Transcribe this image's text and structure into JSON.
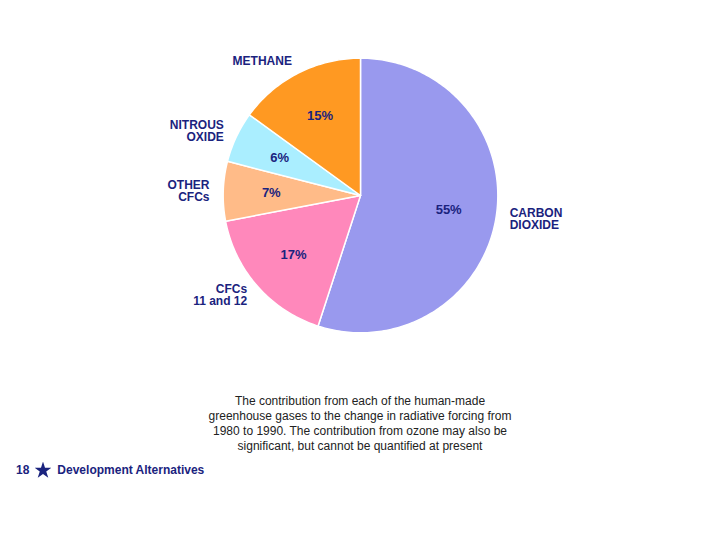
{
  "chart_data": {
    "type": "pie",
    "categories": [
      "CARBON\nDIOXIDE",
      "CFCs\n11 and 12",
      "OTHER\nCFCs",
      "NITROUS\nOXIDE",
      "METHANE"
    ],
    "values": [
      55,
      17,
      7,
      6,
      15
    ],
    "value_labels": [
      "55%",
      "17%",
      "7%",
      "6%",
      "15%"
    ],
    "colors": [
      "#9999ee",
      "#ff88bb",
      "#ffbb88",
      "#aaeeff",
      "#ff9922"
    ],
    "data_labels": true,
    "caption": "The contribution from each of the human-made\ngreenhouse gases to the change in radiative forcing from\n1980 to 1990.  The contribution from ozone may also be\nsignificant, but cannot  be quantified at present",
    "annotations": [
      "18",
      "Development Alternatives"
    ]
  }
}
